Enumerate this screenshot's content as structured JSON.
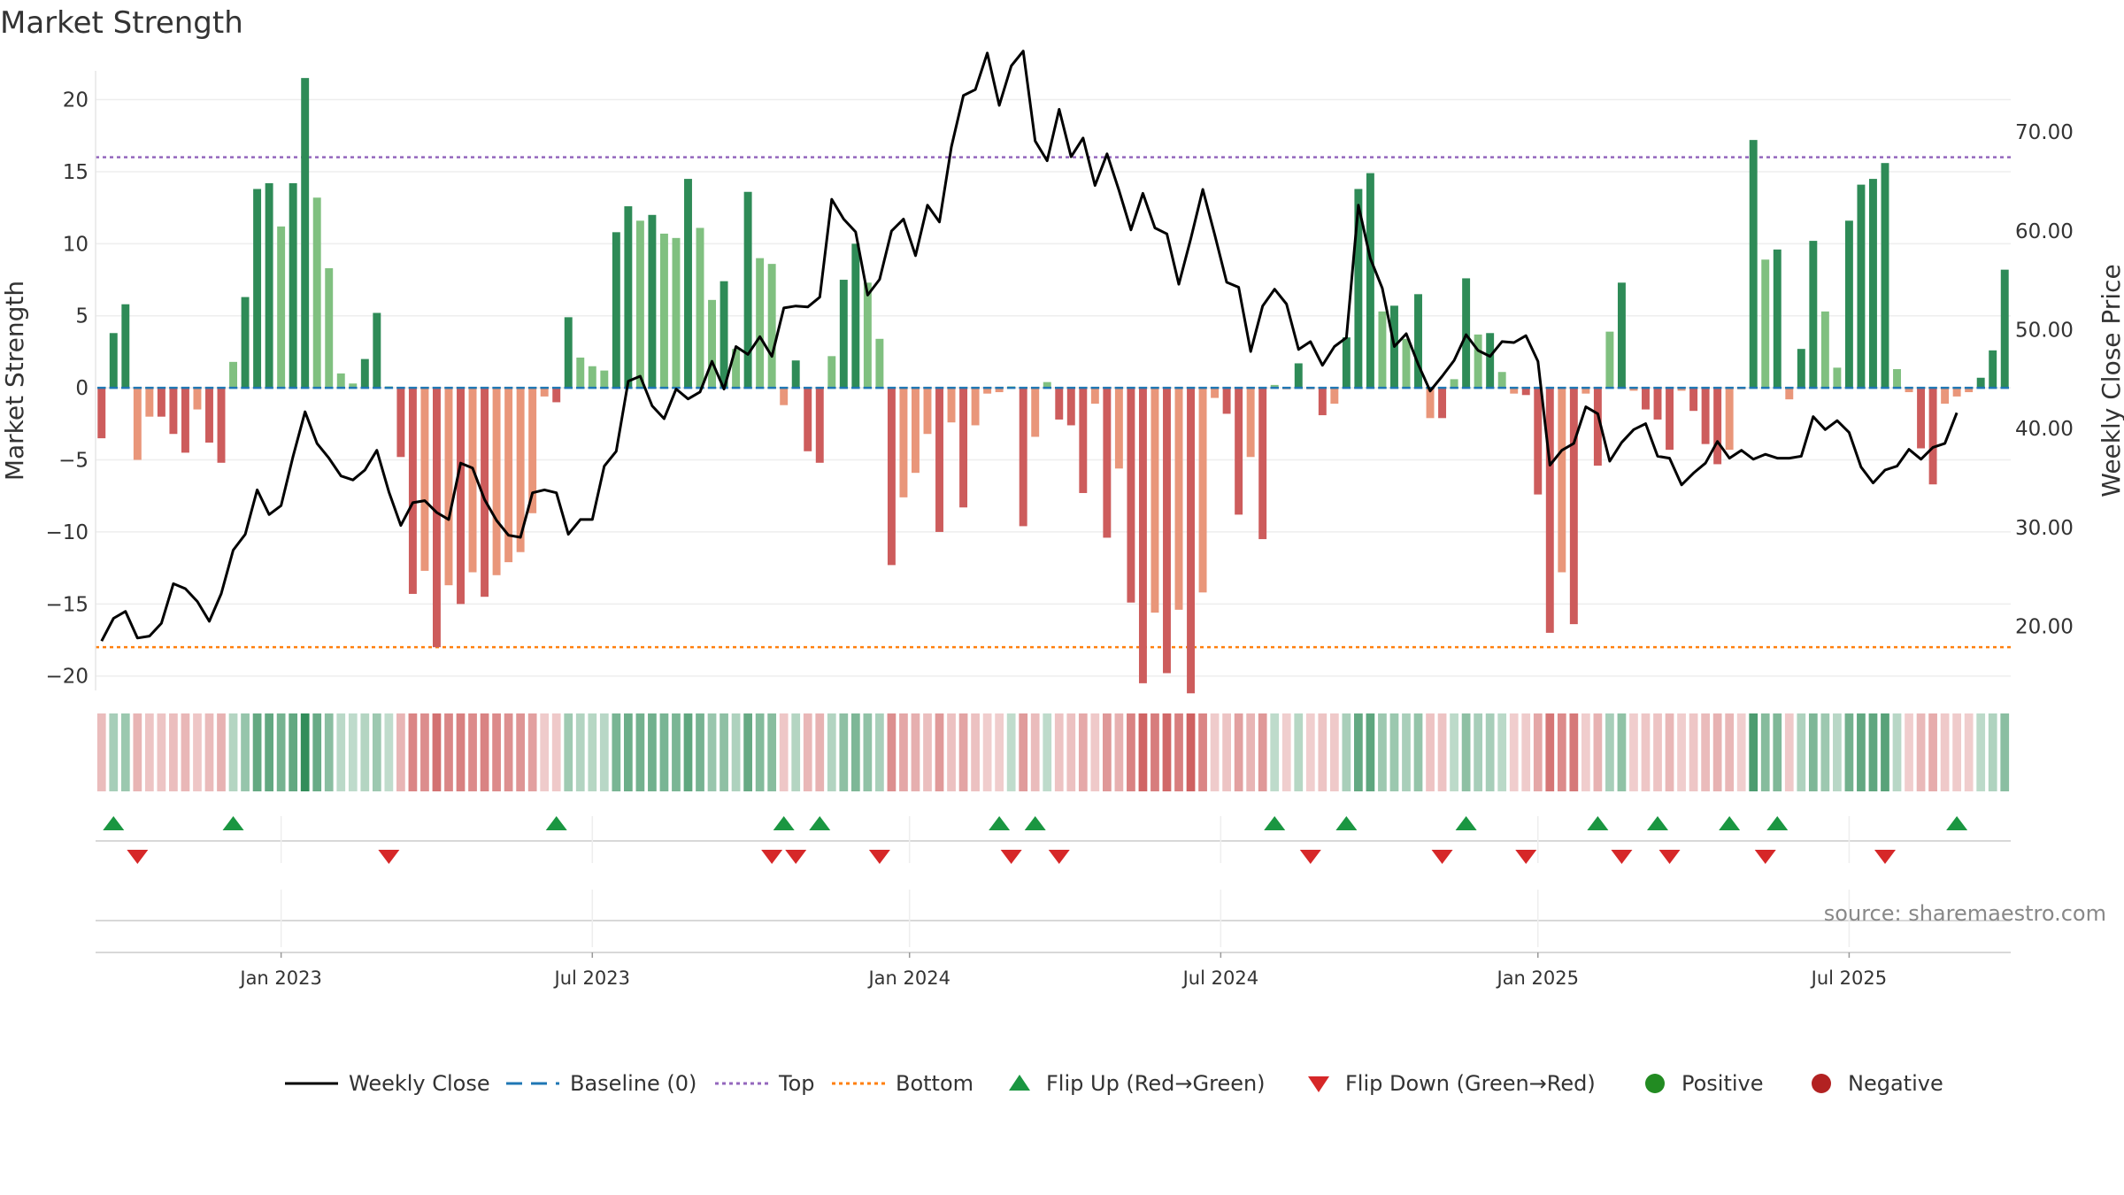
{
  "title": "Market Strength",
  "source": "source: sharemaestro.com",
  "colors": {
    "strong_green": "#2e8b57",
    "light_green": "#80c080",
    "strong_red": "#cd5c5c",
    "light_red": "#e9967a",
    "close_line": "#000000",
    "baseline": "#1f77b4",
    "top_line": "#9467bd",
    "bottom_line": "#ff7f0e",
    "flip_up": "#1a9641",
    "flip_down": "#d62728",
    "positive": "#228b22",
    "negative": "#b22222"
  },
  "chart_data": {
    "type": "bar+line",
    "title": "Market Strength",
    "ylabel_left": "Market Strength",
    "ylabel_right": "Weekly Close Price",
    "ylim_left": [
      -21,
      22
    ],
    "ylim_right": [
      13.5,
      76.2
    ],
    "yticks_left": [
      20,
      15,
      10,
      5,
      0,
      -5,
      -10,
      -15,
      -20
    ],
    "yticks_left_labels": [
      "20",
      "15",
      "10",
      "5",
      "0",
      "−5",
      "−10",
      "−15",
      "−20"
    ],
    "yticks_right": [
      70,
      60,
      50,
      40,
      30,
      20
    ],
    "yticks_right_labels": [
      "70.00",
      "60.00",
      "50.00",
      "40.00",
      "30.00",
      "20.00"
    ],
    "top_level": 16.0,
    "bottom_level": -18.0,
    "x_tick_labels": [
      {
        "label": "Jan 2023",
        "week": 15
      },
      {
        "label": "Jul 2023",
        "week": 41
      },
      {
        "label": "Jan 2024",
        "week": 67.5
      },
      {
        "label": "Jul 2024",
        "week": 93.5
      },
      {
        "label": "Jan 2025",
        "week": 120
      },
      {
        "label": "Jul 2025",
        "week": 146
      }
    ],
    "strength": [
      -3.5,
      3.8,
      5.8,
      -5,
      -2,
      -2,
      -3.2,
      -4.5,
      -1.5,
      -3.8,
      -5.2,
      1.8,
      6.3,
      13.8,
      14.2,
      11.2,
      14.2,
      21.5,
      13.2,
      8.3,
      1,
      0.3,
      2,
      5.2,
      0.1,
      -4.8,
      -14.3,
      -12.7,
      -18,
      -13.7,
      -15,
      -12.8,
      -14.5,
      -13,
      -12.1,
      -11.4,
      -8.7,
      -0.6,
      -1,
      4.9,
      2.1,
      1.5,
      1.2,
      10.8,
      12.6,
      11.6,
      12,
      10.7,
      10.4,
      14.5,
      11.1,
      6.1,
      7.4,
      2.7,
      13.6,
      9,
      8.6,
      -1.2,
      1.9,
      -4.4,
      -5.2,
      2.2,
      7.5,
      10,
      7.3,
      3.4,
      -12.3,
      -7.6,
      -5.9,
      -3.2,
      -10,
      -2.4,
      -8.3,
      -2.6,
      -0.4,
      -0.3,
      0.1,
      -9.6,
      -3.4,
      0.4,
      -2.2,
      -2.6,
      -7.3,
      -1.1,
      -10.4,
      -5.6,
      -14.9,
      -20.5,
      -15.6,
      -19.8,
      -15.4,
      -21.2,
      -14.2,
      -0.7,
      -1.8,
      -8.8,
      -4.8,
      -10.5,
      0.2,
      -0.1,
      1.7,
      -0.1,
      -1.9,
      -1.1,
      3.5,
      13.8,
      14.9,
      5.3,
      5.7,
      3.4,
      6.5,
      -2.1,
      -2.1,
      0.6,
      7.6,
      3.7,
      3.8,
      1.1,
      -0.4,
      -0.5,
      -7.4,
      -17,
      -12.8,
      -16.4,
      -0.4,
      -5.4,
      3.9,
      7.3,
      -0.2,
      -1.5,
      -2.2,
      -4.3,
      -0.2,
      -1.6,
      -3.9,
      -5.3,
      -4.3,
      -0.1,
      17.2,
      8.9,
      9.6,
      -0.8,
      2.7,
      10.2,
      5.3,
      1.4,
      11.6,
      14.1,
      14.5,
      15.6,
      1.3,
      -0.3,
      -4.2,
      -6.7,
      -1.1,
      -0.6,
      -0.3,
      0.7,
      2.6,
      8.2
    ],
    "close": [
      18.5,
      20.8,
      21.5,
      18.8,
      19,
      20.3,
      24.3,
      23.8,
      22.5,
      20.5,
      23.3,
      27.7,
      29.3,
      33.8,
      31.3,
      32.2,
      37.2,
      41.7,
      38.5,
      37,
      35.2,
      34.8,
      35.8,
      37.8,
      33.6,
      30.2,
      32.5,
      32.7,
      31.5,
      30.8,
      36.5,
      36,
      32.8,
      30.7,
      29.2,
      29,
      33.5,
      33.8,
      33.5,
      29.3,
      30.8,
      30.8,
      36.2,
      37.7,
      44.8,
      45.3,
      42.3,
      41,
      44,
      43,
      43.7,
      46.8,
      44,
      48.3,
      47.5,
      49.3,
      47.3,
      52.2,
      52.4,
      52.3,
      53.3,
      63.2,
      61.2,
      59.9,
      53.5,
      55.1,
      60,
      61.2,
      57.5,
      62.6,
      60.9,
      68.5,
      73.7,
      74.3,
      78,
      72.7,
      76.7,
      78.2,
      69.1,
      67.1,
      72.3,
      67.5,
      69.4,
      64.6,
      67.8,
      64.1,
      60.1,
      63.8,
      60.3,
      59.7,
      54.6,
      59.2,
      64.2,
      59.6,
      54.8,
      54.3,
      47.8,
      52.4,
      54.1,
      52.6,
      48,
      48.8,
      46.4,
      48.3,
      49.2,
      62.6,
      57.2,
      54.2,
      48.3,
      49.6,
      46.5,
      43.8,
      45.3,
      46.9,
      49.5,
      47.9,
      47.3,
      48.8,
      48.7,
      49.4,
      46.8,
      36.3,
      37.8,
      38.5,
      42.2,
      41.5,
      36.7,
      38.6,
      39.9,
      40.5,
      37.2,
      37,
      34.3,
      35.5,
      36.5,
      38.7,
      37,
      37.8,
      36.9,
      37.4,
      37,
      37,
      37.2,
      41.2,
      39.9,
      40.8,
      39.6,
      36.1,
      34.5,
      35.8,
      36.2,
      37.9,
      36.9,
      38.1,
      38.5,
      41.6
    ],
    "flip_up_weeks": [
      1,
      11,
      38,
      57,
      60,
      75,
      78,
      98,
      104,
      114,
      125,
      130,
      136,
      140,
      155
    ],
    "flip_down_weeks": [
      3,
      24,
      56,
      58,
      65,
      76,
      80,
      101,
      112,
      119,
      127,
      131,
      139,
      149
    ]
  },
  "legend": [
    {
      "label": "Weekly Close",
      "kind": "line"
    },
    {
      "label": "Baseline (0)",
      "kind": "dash-blue"
    },
    {
      "label": "Top",
      "kind": "dot-purple"
    },
    {
      "label": "Bottom",
      "kind": "dot-orange"
    },
    {
      "label": "Flip Up (Red→Green)",
      "kind": "tri-up"
    },
    {
      "label": "Flip Down (Green→Red)",
      "kind": "tri-down"
    },
    {
      "label": "Positive",
      "kind": "dot-green"
    },
    {
      "label": "Negative",
      "kind": "dot-red"
    }
  ]
}
